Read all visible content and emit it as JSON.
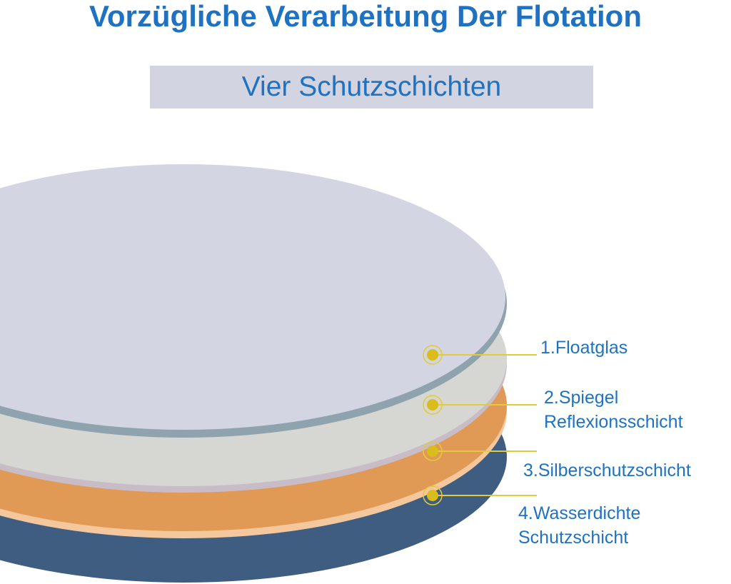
{
  "header": {
    "title": "Vorzügliche Verarbeitung Der Flotation",
    "subtitle": "Vier Schutzschichten"
  },
  "layers": [
    {
      "id": "floatglas",
      "lines": [
        "1.Floatglas"
      ]
    },
    {
      "id": "spiegel",
      "lines": [
        "2.Spiegel",
        "Reflexionsschicht"
      ]
    },
    {
      "id": "silber",
      "lines": [
        "3.Silberschutzschicht"
      ]
    },
    {
      "id": "wasser",
      "lines": [
        "4.Wasserdichte",
        "Schutzschicht"
      ]
    }
  ],
  "colors": {
    "text": "#1f72c1",
    "subtitle_bg": "#d2d4e2",
    "glass_top": "#d3d5e2",
    "glass_edge": "#8ea3ae",
    "mirror": "#d6d6d2",
    "mirror_edge": "#c8bcc6",
    "silver": "#e09a55",
    "silver_edge": "#f5c79c",
    "waterproof": "#3f5d80",
    "marker": "#d9bd1a",
    "leader": "#e2cb3a"
  }
}
